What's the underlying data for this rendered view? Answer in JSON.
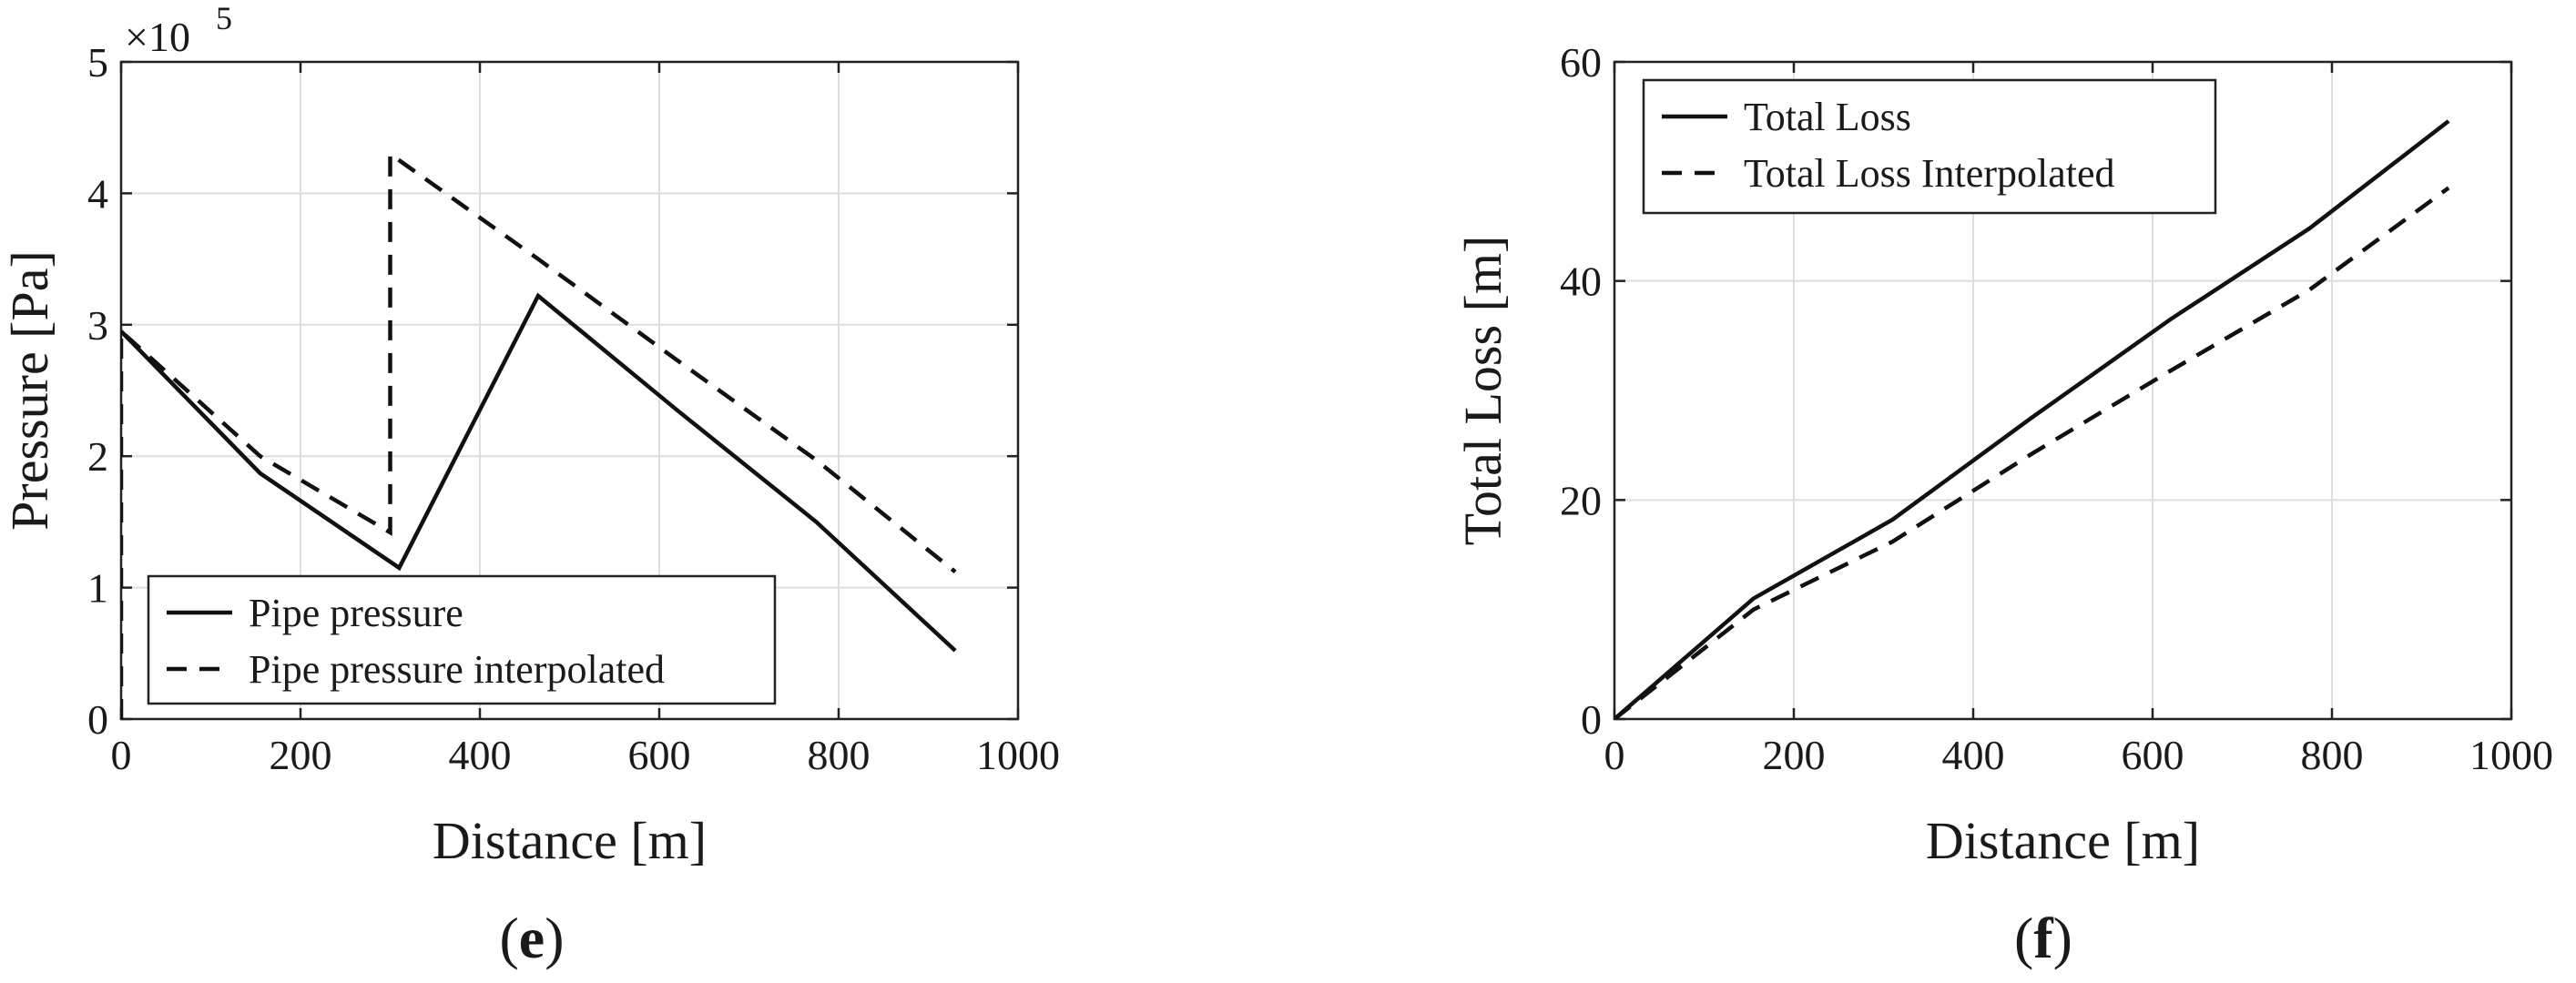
{
  "chart_data": [
    {
      "type": "line",
      "panel": "(e)",
      "panel_letter": "e",
      "xlabel": "Distance [m]",
      "ylabel": "Pressure [Pa]",
      "xlim": [
        0,
        1000
      ],
      "ylim": [
        0,
        500000
      ],
      "y_exponent_label": "×10",
      "y_exponent_power": "5",
      "xticks": [
        0,
        200,
        400,
        600,
        800,
        1000
      ],
      "xtick_labels": [
        "0",
        "200",
        "400",
        "600",
        "800",
        "1000"
      ],
      "yticks": [
        0,
        100000,
        200000,
        300000,
        400000,
        500000
      ],
      "ytick_labels": [
        "0",
        "1",
        "2",
        "3",
        "4",
        "5"
      ],
      "grid": true,
      "legend_position": "bottom-left",
      "series": [
        {
          "name": "Pipe pressure",
          "style": "solid",
          "x": [
            0,
            155,
            310,
            465,
            620,
            775,
            930
          ],
          "y": [
            295000,
            187000,
            115000,
            322000,
            235000,
            150000,
            52000
          ]
        },
        {
          "name": "Pipe pressure interpolated",
          "style": "dashed",
          "x": [
            0,
            0,
            155,
            300,
            300,
            465,
            620,
            775,
            930
          ],
          "y": [
            0,
            295000,
            200000,
            142000,
            430000,
            350000,
            273000,
            197000,
            112000
          ]
        }
      ]
    },
    {
      "type": "line",
      "panel": "(f)",
      "panel_letter": "f",
      "xlabel": "Distance [m]",
      "ylabel": "Total Loss [m]",
      "xlim": [
        0,
        1000
      ],
      "ylim": [
        0,
        60
      ],
      "xticks": [
        0,
        200,
        400,
        600,
        800,
        1000
      ],
      "xtick_labels": [
        "0",
        "200",
        "400",
        "600",
        "800",
        "1000"
      ],
      "yticks": [
        0,
        20,
        40,
        60
      ],
      "ytick_labels": [
        "0",
        "20",
        "40",
        "60"
      ],
      "grid": true,
      "legend_position": "top-left",
      "series": [
        {
          "name": "Total Loss",
          "style": "solid",
          "x": [
            0,
            155,
            310,
            465,
            620,
            775,
            930
          ],
          "y": [
            0,
            11,
            18.2,
            27.5,
            36.5,
            44.8,
            54.6
          ]
        },
        {
          "name": "Total Loss Interpolated",
          "style": "dashed",
          "x": [
            0,
            155,
            310,
            465,
            620,
            775,
            930
          ],
          "y": [
            0,
            10,
            16.2,
            24.2,
            31.8,
            39.2,
            48.5
          ]
        }
      ]
    }
  ]
}
